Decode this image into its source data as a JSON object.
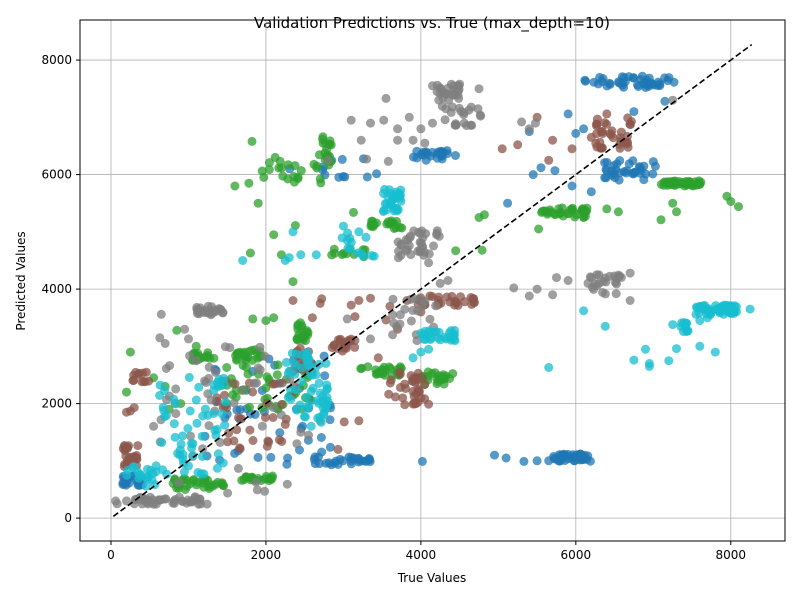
{
  "chart_data": {
    "type": "scatter",
    "title": "Validation Predictions vs. True (max_depth=10)",
    "xlabel": "True Values",
    "ylabel": "Predicted Values",
    "xlim": [
      -400,
      8700
    ],
    "ylim": [
      -400,
      8700
    ],
    "xticks": [
      0,
      2000,
      4000,
      6000,
      8000
    ],
    "yticks": [
      0,
      2000,
      4000,
      6000,
      8000
    ],
    "xtick_labels": [
      "0",
      "2000",
      "4000",
      "6000",
      "8000"
    ],
    "ytick_labels": [
      "0",
      "2000",
      "4000",
      "6000",
      "8000"
    ],
    "grid": true,
    "point_opacity": 0.75,
    "reference_line": {
      "x": [
        30,
        8270
      ],
      "y": [
        30,
        8270
      ],
      "style": "dashed",
      "color": "#000000"
    },
    "colors": {
      "blue": "#1f77b4",
      "green": "#2ca02c",
      "brown": "#8c564b",
      "gray": "#7f7f7f",
      "cyan": "#17becf"
    },
    "series": [
      {
        "color": "#1f77b4",
        "clusters": [
          {
            "x": [
              6100,
              7300
            ],
            "y": [
              7520,
              7720
            ],
            "n": 45
          },
          {
            "x": [
              3900,
              4450
            ],
            "y": [
              6250,
              6420
            ],
            "n": 25
          },
          {
            "x": [
              6300,
              7050
            ],
            "y": [
              5900,
              6250
            ],
            "n": 35
          },
          {
            "x": [
              5700,
              6200
            ],
            "y": [
              990,
              1120
            ],
            "n": 40
          },
          {
            "x": [
              2600,
              3350
            ],
            "y": [
              930,
              1070
            ],
            "n": 30
          },
          {
            "x": [
              150,
              450
            ],
            "y": [
              560,
              760
            ],
            "n": 20
          },
          {
            "x": [
              1100,
              2900
            ],
            "y": [
              1000,
              2900
            ],
            "n": 45
          },
          {
            "x": [
              2300,
              3500
            ],
            "y": [
              5950,
              6350
            ],
            "n": 12
          }
        ],
        "points": [
          [
            4020,
            990
          ],
          [
            4950,
            1100
          ],
          [
            5100,
            1050
          ],
          [
            5330,
            990
          ],
          [
            5500,
            1000
          ],
          [
            5650,
            1000
          ],
          [
            2280,
            1050
          ],
          [
            2270,
            940
          ],
          [
            5900,
            7060
          ],
          [
            6100,
            6800
          ],
          [
            6000,
            6720
          ],
          [
            7150,
            7280
          ],
          [
            5950,
            5800
          ],
          [
            6200,
            5700
          ],
          [
            5120,
            5500
          ],
          [
            5550,
            6120
          ],
          [
            5450,
            6000
          ],
          [
            5400,
            6750
          ],
          [
            5730,
            6070
          ],
          [
            6750,
            7100
          ]
        ]
      },
      {
        "color": "#2ca02c",
        "clusters": [
          {
            "x": [
              7100,
              7650
            ],
            "y": [
              5800,
              5890
            ],
            "n": 40
          },
          {
            "x": [
              5500,
              6150
            ],
            "y": [
              5250,
              5420
            ],
            "n": 35
          },
          {
            "x": [
              2600,
              2850
            ],
            "y": [
              6100,
              6680
            ],
            "n": 22
          },
          {
            "x": [
              1950,
              2800
            ],
            "y": [
              5850,
              6300
            ],
            "n": 18
          },
          {
            "x": [
              3350,
              3800
            ],
            "y": [
              5050,
              5200
            ],
            "n": 20
          },
          {
            "x": [
              2400,
              2550
            ],
            "y": [
              3100,
              3450
            ],
            "n": 20
          },
          {
            "x": [
              1550,
              1950
            ],
            "y": [
              2750,
              2950
            ],
            "n": 22
          },
          {
            "x": [
              1050,
              1350
            ],
            "y": [
              2750,
              2900
            ],
            "n": 18
          },
          {
            "x": [
              3200,
              3750
            ],
            "y": [
              2480,
              2650
            ],
            "n": 25
          },
          {
            "x": [
              4000,
              4450
            ],
            "y": [
              2330,
              2560
            ],
            "n": 25
          },
          {
            "x": [
              800,
              1500
            ],
            "y": [
              500,
              700
            ],
            "n": 35
          },
          {
            "x": [
              1600,
              2100
            ],
            "y": [
              650,
              740
            ],
            "n": 22
          },
          {
            "x": [
              2800,
              3300
            ],
            "y": [
              4550,
              4720
            ],
            "n": 12
          },
          {
            "x": [
              1400,
              2600
            ],
            "y": [
              1900,
              2700
            ],
            "n": 45
          }
        ],
        "points": [
          [
            1820,
            6580
          ],
          [
            2120,
            6300
          ],
          [
            1600,
            5800
          ],
          [
            1780,
            5850
          ],
          [
            1900,
            5500
          ],
          [
            2100,
            4950
          ],
          [
            2200,
            4600
          ],
          [
            1800,
            4630
          ],
          [
            2380,
            5110
          ],
          [
            4450,
            4670
          ],
          [
            4750,
            5250
          ],
          [
            4790,
            4680
          ],
          [
            4820,
            5300
          ],
          [
            3130,
            5340
          ],
          [
            7950,
            5620
          ],
          [
            8100,
            5440
          ],
          [
            7250,
            5500
          ],
          [
            7300,
            5350
          ],
          [
            8000,
            5530
          ],
          [
            7100,
            5210
          ],
          [
            6400,
            5400
          ],
          [
            6550,
            5350
          ],
          [
            5520,
            5050
          ],
          [
            700,
            2300
          ],
          [
            550,
            2450
          ],
          [
            250,
            2900
          ],
          [
            750,
            1900
          ],
          [
            850,
            3280
          ],
          [
            1100,
            3000
          ],
          [
            900,
            2000
          ],
          [
            200,
            2200
          ],
          [
            1830,
            3480
          ],
          [
            2000,
            3450
          ],
          [
            2100,
            3500
          ],
          [
            2350,
            4130
          ]
        ]
      },
      {
        "color": "#8c564b",
        "clusters": [
          {
            "x": [
              6250,
              6750
            ],
            "y": [
              6450,
              7000
            ],
            "n": 35
          },
          {
            "x": [
              3900,
              4700
            ],
            "y": [
              3700,
              3880
            ],
            "n": 30
          },
          {
            "x": [
              3550,
              4050
            ],
            "y": [
              1980,
              2600
            ],
            "n": 35
          },
          {
            "x": [
              2850,
              3150
            ],
            "y": [
              2900,
              3150
            ],
            "n": 22
          },
          {
            "x": [
              2350,
              2600
            ],
            "y": [
              2550,
              3000
            ],
            "n": 25
          },
          {
            "x": [
              150,
              350
            ],
            "y": [
              900,
              1320
            ],
            "n": 25
          },
          {
            "x": [
              250,
              500
            ],
            "y": [
              2380,
              2550
            ],
            "n": 12
          },
          {
            "x": [
              1300,
              2400
            ],
            "y": [
              1200,
              2400
            ],
            "n": 35
          }
        ],
        "points": [
          [
            4000,
            3600
          ],
          [
            3820,
            3800
          ],
          [
            3700,
            3300
          ],
          [
            3550,
            3460
          ],
          [
            3600,
            3700
          ],
          [
            3350,
            3840
          ],
          [
            3450,
            2800
          ],
          [
            3200,
            3800
          ],
          [
            3100,
            3720
          ],
          [
            3150,
            3520
          ],
          [
            2720,
            3830
          ],
          [
            2600,
            3500
          ],
          [
            2700,
            3750
          ],
          [
            2350,
            3800
          ],
          [
            6200,
            6650
          ],
          [
            5950,
            6450
          ],
          [
            5700,
            6600
          ],
          [
            5650,
            6250
          ],
          [
            5050,
            6450
          ],
          [
            5250,
            6520
          ],
          [
            5500,
            7000
          ],
          [
            6400,
            7060
          ],
          [
            4100,
            1990
          ],
          [
            3010,
            1680
          ],
          [
            3200,
            1700
          ],
          [
            2930,
            1200
          ],
          [
            200,
            1850
          ],
          [
            250,
            1870
          ],
          [
            300,
            1930
          ]
        ]
      },
      {
        "color": "#7f7f7f",
        "clusters": [
          {
            "x": [
              4200,
              4500
            ],
            "y": [
              7300,
              7600
            ],
            "n": 25
          },
          {
            "x": [
              4250,
              4800
            ],
            "y": [
              6850,
              7200
            ],
            "n": 22
          },
          {
            "x": [
              3700,
              4250
            ],
            "y": [
              4500,
              5050
            ],
            "n": 35
          },
          {
            "x": [
              6150,
              6600
            ],
            "y": [
              3900,
              4300
            ],
            "n": 25
          },
          {
            "x": [
              1100,
              1450
            ],
            "y": [
              3550,
              3700
            ],
            "n": 28
          },
          {
            "x": [
              300,
              1250
            ],
            "y": [
              230,
              380
            ],
            "n": 45
          },
          {
            "x": [
              550,
              2350
            ],
            "y": [
              400,
              3000
            ],
            "n": 45
          },
          {
            "x": [
              3600,
              4200
            ],
            "y": [
              3200,
              3850
            ],
            "n": 20
          }
        ],
        "points": [
          [
            3550,
            7330
          ],
          [
            3520,
            6950
          ],
          [
            3350,
            6900
          ],
          [
            3100,
            6950
          ],
          [
            3850,
            7000
          ],
          [
            3700,
            6800
          ],
          [
            3700,
            6600
          ],
          [
            3900,
            6600
          ],
          [
            4000,
            6800
          ],
          [
            4150,
            6900
          ],
          [
            3230,
            6600
          ],
          [
            3580,
            6230
          ],
          [
            4500,
            7580
          ],
          [
            4750,
            7500
          ],
          [
            4150,
            7550
          ],
          [
            4050,
            6550
          ],
          [
            2800,
            6250
          ],
          [
            3300,
            6270
          ],
          [
            5300,
            6920
          ],
          [
            5400,
            6800
          ],
          [
            5480,
            6900
          ],
          [
            7250,
            7300
          ],
          [
            5500,
            4000
          ],
          [
            5400,
            3880
          ],
          [
            5200,
            4020
          ],
          [
            5700,
            3900
          ],
          [
            5750,
            4200
          ],
          [
            5900,
            4150
          ],
          [
            6700,
            3800
          ],
          [
            6700,
            4280
          ],
          [
            3350,
            3130
          ],
          [
            3950,
            3100
          ],
          [
            4350,
            4150
          ],
          [
            4250,
            4100
          ],
          [
            4100,
            4460
          ],
          [
            3050,
            3480
          ],
          [
            2700,
            1700
          ],
          [
            2450,
            1500
          ],
          [
            2400,
            1300
          ],
          [
            2550,
            1450
          ],
          [
            2200,
            1800
          ],
          [
            650,
            3560
          ],
          [
            630,
            3150
          ],
          [
            700,
            3050
          ],
          [
            950,
            3300
          ],
          [
            1000,
            3130
          ],
          [
            1100,
            2750
          ],
          [
            80,
            250
          ],
          [
            60,
            300
          ],
          [
            200,
            300
          ]
        ]
      },
      {
        "color": "#17becf",
        "clusters": [
          {
            "x": [
              7550,
              8100
            ],
            "y": [
              3550,
              3720
            ],
            "n": 45
          },
          {
            "x": [
              7350,
              7450
            ],
            "y": [
              3250,
              3450
            ],
            "n": 10
          },
          {
            "x": [
              3500,
              3750
            ],
            "y": [
              5350,
              5750
            ],
            "n": 30
          },
          {
            "x": [
              4000,
              4450
            ],
            "y": [
              3100,
              3280
            ],
            "n": 25
          },
          {
            "x": [
              2250,
              2800
            ],
            "y": [
              1600,
              2900
            ],
            "n": 60
          },
          {
            "x": [
              600,
              1500
            ],
            "y": [
              600,
              2500
            ],
            "n": 60
          },
          {
            "x": [
              200,
              600
            ],
            "y": [
              550,
              950
            ],
            "n": 20
          },
          {
            "x": [
              2900,
              3400
            ],
            "y": [
              4550,
              5000
            ],
            "n": 12
          }
        ],
        "points": [
          [
            8250,
            3650
          ],
          [
            8000,
            3690
          ],
          [
            7600,
            3450
          ],
          [
            7700,
            3500
          ],
          [
            7800,
            2900
          ],
          [
            7600,
            3000
          ],
          [
            6900,
            2950
          ],
          [
            6950,
            2700
          ],
          [
            6950,
            2650
          ],
          [
            7200,
            2750
          ],
          [
            7300,
            2960
          ],
          [
            7250,
            3380
          ],
          [
            6100,
            3620
          ],
          [
            6380,
            3350
          ],
          [
            6750,
            2760
          ],
          [
            5650,
            2630
          ],
          [
            4000,
            2900
          ],
          [
            3900,
            2800
          ],
          [
            4100,
            2950
          ],
          [
            1700,
            4500
          ],
          [
            2250,
            4500
          ],
          [
            2350,
            5000
          ],
          [
            2300,
            4550
          ],
          [
            2650,
            4600
          ],
          [
            2450,
            4600
          ],
          [
            3000,
            5100
          ],
          [
            3200,
            5000
          ],
          [
            3050,
            4850
          ]
        ]
      }
    ]
  }
}
